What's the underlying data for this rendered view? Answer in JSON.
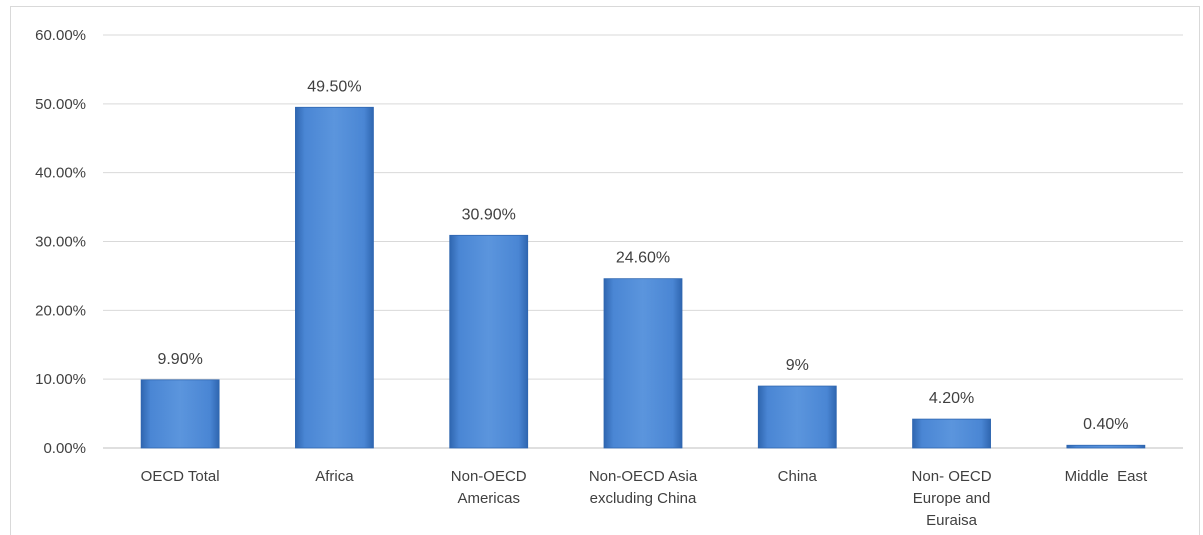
{
  "chart_data": {
    "type": "bar",
    "categories": [
      [
        "OECD Total"
      ],
      [
        "Africa"
      ],
      [
        "Non-OECD",
        "Americas"
      ],
      [
        "Non-OECD Asia",
        "excluding China"
      ],
      [
        "China"
      ],
      [
        "Non- OECD",
        "Europe and",
        "Euraisa"
      ],
      [
        "Middle  East"
      ]
    ],
    "values": [
      9.9,
      49.5,
      30.9,
      24.6,
      9,
      4.2,
      0.4
    ],
    "data_labels": [
      "9.90%",
      "49.50%",
      "30.90%",
      "24.60%",
      "9%",
      "4.20%",
      "0.40%"
    ],
    "y_ticks": [
      "0.00%",
      "10.00%",
      "20.00%",
      "30.00%",
      "40.00%",
      "50.00%",
      "60.00%"
    ],
    "ylim": [
      0,
      60
    ],
    "grid": true,
    "legend": "none",
    "title": "",
    "xlabel": "",
    "ylabel": "",
    "colors": {
      "bar": "#4a86d4",
      "bar_dark": "#2f66b0",
      "grid": "#d9d9d9",
      "text": "#404040"
    }
  }
}
